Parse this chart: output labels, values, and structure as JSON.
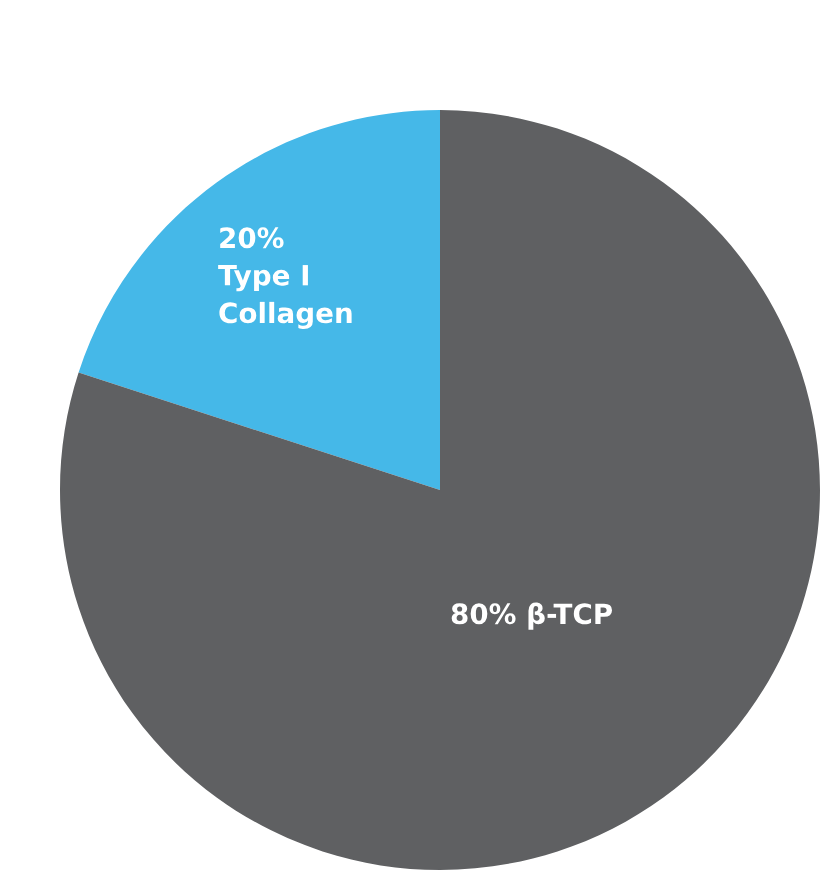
{
  "chart_data": {
    "type": "pie",
    "categories": [
      "Type I\nCollagen",
      "β-TCP"
    ],
    "values": [
      20,
      80
    ],
    "value_labels": [
      "20%",
      "80%"
    ],
    "colors": [
      "#45b8e8",
      "#5f6062"
    ],
    "legend": false
  }
}
